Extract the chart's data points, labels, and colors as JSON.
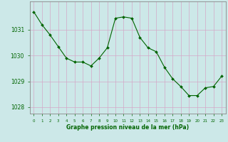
{
  "x": [
    0,
    1,
    2,
    3,
    4,
    5,
    6,
    7,
    8,
    9,
    10,
    11,
    12,
    13,
    14,
    15,
    16,
    17,
    18,
    19,
    20,
    21,
    22,
    23
  ],
  "y": [
    1031.7,
    1031.2,
    1030.8,
    1030.35,
    1029.9,
    1029.75,
    1029.75,
    1029.6,
    1029.9,
    1030.3,
    1031.45,
    1031.5,
    1031.45,
    1030.7,
    1030.3,
    1030.15,
    1029.55,
    1029.1,
    1028.8,
    1028.45,
    1028.45,
    1028.75,
    1028.8,
    1029.2
  ],
  "ylim": [
    1027.75,
    1032.1
  ],
  "yticks": [
    1028,
    1029,
    1030,
    1031
  ],
  "xticks": [
    0,
    1,
    2,
    3,
    4,
    5,
    6,
    7,
    8,
    9,
    10,
    11,
    12,
    13,
    14,
    15,
    16,
    17,
    18,
    19,
    20,
    21,
    22,
    23
  ],
  "line_color": "#006400",
  "marker_color": "#006400",
  "bg_color": "#cce8e8",
  "grid_color": "#d4a8c8",
  "xlabel": "Graphe pression niveau de la mer (hPa)",
  "xlabel_color": "#006400",
  "tick_color": "#006400",
  "axis_color": "#888888",
  "linewidth": 0.8,
  "markersize": 2.0,
  "ytick_fontsize": 5.5,
  "xtick_fontsize": 4.0,
  "xlabel_fontsize": 5.5
}
